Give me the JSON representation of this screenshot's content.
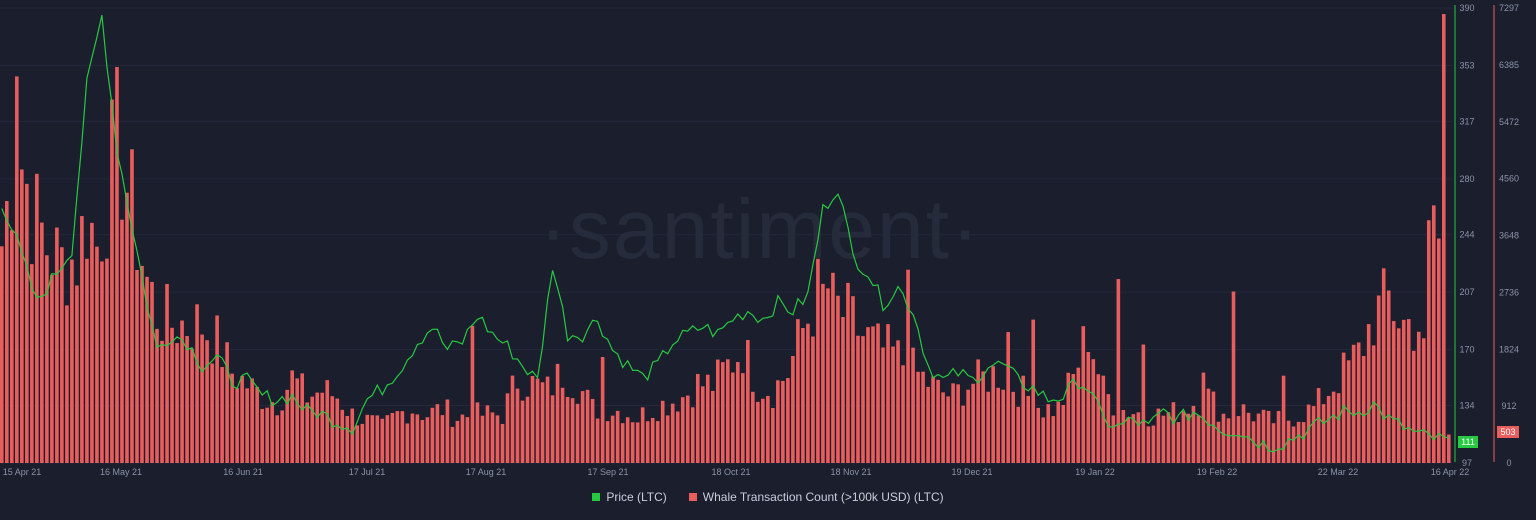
{
  "chart_data": {
    "type": "bar+line",
    "watermark": "·santiment·",
    "x_tick_labels": [
      "15 Apr 21",
      "16 May 21",
      "16 Jun 21",
      "17 Jul 21",
      "17 Aug 21",
      "17 Sep 21",
      "18 Oct 21",
      "18 Nov 21",
      "19 Dec 21",
      "19 Jan 22",
      "19 Feb 22",
      "22 Mar 22",
      "16 Apr 22"
    ],
    "y_right_price": {
      "ticks": [
        "390",
        "353",
        "317",
        "280",
        "244",
        "207",
        "170",
        "134",
        "97"
      ],
      "range": [
        97,
        390
      ],
      "color": "#26c940"
    },
    "y_right_count": {
      "ticks": [
        "7297",
        "6385",
        "5472",
        "4560",
        "3648",
        "2736",
        "1824",
        "912",
        "0"
      ],
      "range": [
        0,
        7297
      ],
      "color": "#ea5d5d"
    },
    "current_price_badge": "111",
    "current_count_badge": "503",
    "series": [
      {
        "name": "Price (LTC)",
        "type": "line",
        "color": "#26c940",
        "keypoints": [
          [
            0,
            265
          ],
          [
            3,
            240
          ],
          [
            7,
            200
          ],
          [
            10,
            215
          ],
          [
            14,
            235
          ],
          [
            17,
            340
          ],
          [
            20,
            385
          ],
          [
            23,
            300
          ],
          [
            26,
            250
          ],
          [
            29,
            200
          ],
          [
            31,
            170
          ],
          [
            34,
            180
          ],
          [
            37,
            175
          ],
          [
            40,
            160
          ],
          [
            43,
            165
          ],
          [
            46,
            150
          ],
          [
            49,
            150
          ],
          [
            52,
            140
          ],
          [
            55,
            138
          ],
          [
            58,
            140
          ],
          [
            61,
            130
          ],
          [
            63,
            130
          ],
          [
            66,
            125
          ],
          [
            70,
            120
          ],
          [
            73,
            138
          ],
          [
            76,
            145
          ],
          [
            80,
            160
          ],
          [
            83,
            175
          ],
          [
            86,
            185
          ],
          [
            89,
            170
          ],
          [
            92,
            175
          ],
          [
            95,
            192
          ],
          [
            98,
            180
          ],
          [
            101,
            172
          ],
          [
            104,
            160
          ],
          [
            107,
            150
          ],
          [
            110,
            225
          ],
          [
            113,
            180
          ],
          [
            116,
            180
          ],
          [
            119,
            190
          ],
          [
            122,
            170
          ],
          [
            125,
            160
          ],
          [
            128,
            152
          ],
          [
            131,
            160
          ],
          [
            134,
            175
          ],
          [
            137,
            180
          ],
          [
            140,
            185
          ],
          [
            143,
            180
          ],
          [
            146,
            190
          ],
          [
            149,
            195
          ],
          [
            152,
            190
          ],
          [
            155,
            200
          ],
          [
            158,
            195
          ],
          [
            161,
            205
          ],
          [
            164,
            260
          ],
          [
            167,
            275
          ],
          [
            170,
            230
          ],
          [
            173,
            220
          ],
          [
            176,
            200
          ],
          [
            179,
            210
          ],
          [
            182,
            195
          ],
          [
            185,
            160
          ],
          [
            188,
            150
          ],
          [
            191,
            155
          ],
          [
            194,
            150
          ],
          [
            197,
            160
          ],
          [
            200,
            160
          ],
          [
            203,
            150
          ],
          [
            206,
            145
          ],
          [
            209,
            138
          ],
          [
            212,
            140
          ],
          [
            215,
            150
          ],
          [
            217,
            145
          ],
          [
            220,
            125
          ],
          [
            223,
            120
          ],
          [
            226,
            125
          ],
          [
            229,
            120
          ],
          [
            232,
            130
          ],
          [
            235,
            125
          ],
          [
            238,
            130
          ],
          [
            241,
            125
          ],
          [
            244,
            118
          ],
          [
            247,
            118
          ],
          [
            250,
            112
          ],
          [
            253,
            108
          ],
          [
            256,
            110
          ],
          [
            259,
            115
          ],
          [
            262,
            120
          ],
          [
            265,
            125
          ],
          [
            268,
            130
          ],
          [
            271,
            130
          ],
          [
            274,
            135
          ],
          [
            277,
            125
          ],
          [
            280,
            120
          ],
          [
            283,
            115
          ],
          [
            286,
            113
          ],
          [
            289,
            111
          ]
        ]
      },
      {
        "name": "Whale Transaction Count (>100k USD) (LTC)",
        "type": "bar",
        "color": "#ea5d5d",
        "keypoints": [
          [
            0,
            3600
          ],
          [
            3,
            5400
          ],
          [
            6,
            4200
          ],
          [
            9,
            3600
          ],
          [
            12,
            3300
          ],
          [
            15,
            3400
          ],
          [
            17,
            4100
          ],
          [
            19,
            3600
          ],
          [
            21,
            4400
          ],
          [
            23,
            5400
          ],
          [
            25,
            4600
          ],
          [
            27,
            3800
          ],
          [
            29,
            3000
          ],
          [
            31,
            2500
          ],
          [
            34,
            2300
          ],
          [
            37,
            2300
          ],
          [
            40,
            2300
          ],
          [
            43,
            2000
          ],
          [
            46,
            1500
          ],
          [
            49,
            1300
          ],
          [
            52,
            1100
          ],
          [
            55,
            1000
          ],
          [
            58,
            1400
          ],
          [
            61,
            1100
          ],
          [
            64,
            1200
          ],
          [
            67,
            1100
          ],
          [
            70,
            800
          ],
          [
            73,
            700
          ],
          [
            76,
            600
          ],
          [
            79,
            800
          ],
          [
            82,
            900
          ],
          [
            85,
            800
          ],
          [
            88,
            900
          ],
          [
            91,
            750
          ],
          [
            94,
            800
          ],
          [
            97,
            800
          ],
          [
            100,
            800
          ],
          [
            103,
            1400
          ],
          [
            106,
            1300
          ],
          [
            109,
            1200
          ],
          [
            112,
            1500
          ],
          [
            115,
            1300
          ],
          [
            118,
            900
          ],
          [
            121,
            900
          ],
          [
            124,
            850
          ],
          [
            127,
            750
          ],
          [
            130,
            900
          ],
          [
            133,
            1000
          ],
          [
            136,
            1100
          ],
          [
            139,
            1300
          ],
          [
            142,
            1300
          ],
          [
            145,
            1600
          ],
          [
            148,
            1900
          ],
          [
            151,
            1300
          ],
          [
            154,
            1200
          ],
          [
            157,
            1500
          ],
          [
            160,
            2200
          ],
          [
            163,
            2800
          ],
          [
            166,
            2600
          ],
          [
            169,
            2400
          ],
          [
            172,
            2100
          ],
          [
            175,
            1900
          ],
          [
            178,
            1800
          ],
          [
            181,
            1600
          ],
          [
            184,
            1400
          ],
          [
            187,
            1200
          ],
          [
            190,
            1100
          ],
          [
            193,
            1300
          ],
          [
            196,
            1400
          ],
          [
            199,
            1500
          ],
          [
            202,
            1300
          ],
          [
            205,
            1100
          ],
          [
            208,
            900
          ],
          [
            211,
            900
          ],
          [
            214,
            1400
          ],
          [
            217,
            2200
          ],
          [
            220,
            1200
          ],
          [
            223,
            900
          ],
          [
            226,
            850
          ],
          [
            229,
            800
          ],
          [
            232,
            800
          ],
          [
            235,
            850
          ],
          [
            238,
            1000
          ],
          [
            241,
            1100
          ],
          [
            244,
            800
          ],
          [
            247,
            900
          ],
          [
            250,
            800
          ],
          [
            253,
            700
          ],
          [
            256,
            700
          ],
          [
            259,
            800
          ],
          [
            262,
            900
          ],
          [
            265,
            1200
          ],
          [
            268,
            1500
          ],
          [
            271,
            1800
          ],
          [
            274,
            2400
          ],
          [
            277,
            2700
          ],
          [
            280,
            2300
          ],
          [
            283,
            2300
          ],
          [
            286,
            4200
          ],
          [
            288,
            5500
          ],
          [
            289,
            500
          ]
        ],
        "peaks": [
          [
            3,
            6200
          ],
          [
            23,
            6350
          ],
          [
            94,
            2200
          ],
          [
            120,
            1700
          ],
          [
            165,
            2800
          ],
          [
            181,
            3100
          ],
          [
            201,
            2100
          ],
          [
            206,
            2300
          ],
          [
            223,
            2950
          ],
          [
            228,
            1900
          ],
          [
            240,
            1450
          ],
          [
            246,
            2750
          ],
          [
            256,
            1400
          ],
          [
            284,
            2000
          ],
          [
            287,
            3600
          ],
          [
            288,
            7200
          ]
        ]
      }
    ],
    "legend": {
      "placement": "bottom-center"
    }
  }
}
